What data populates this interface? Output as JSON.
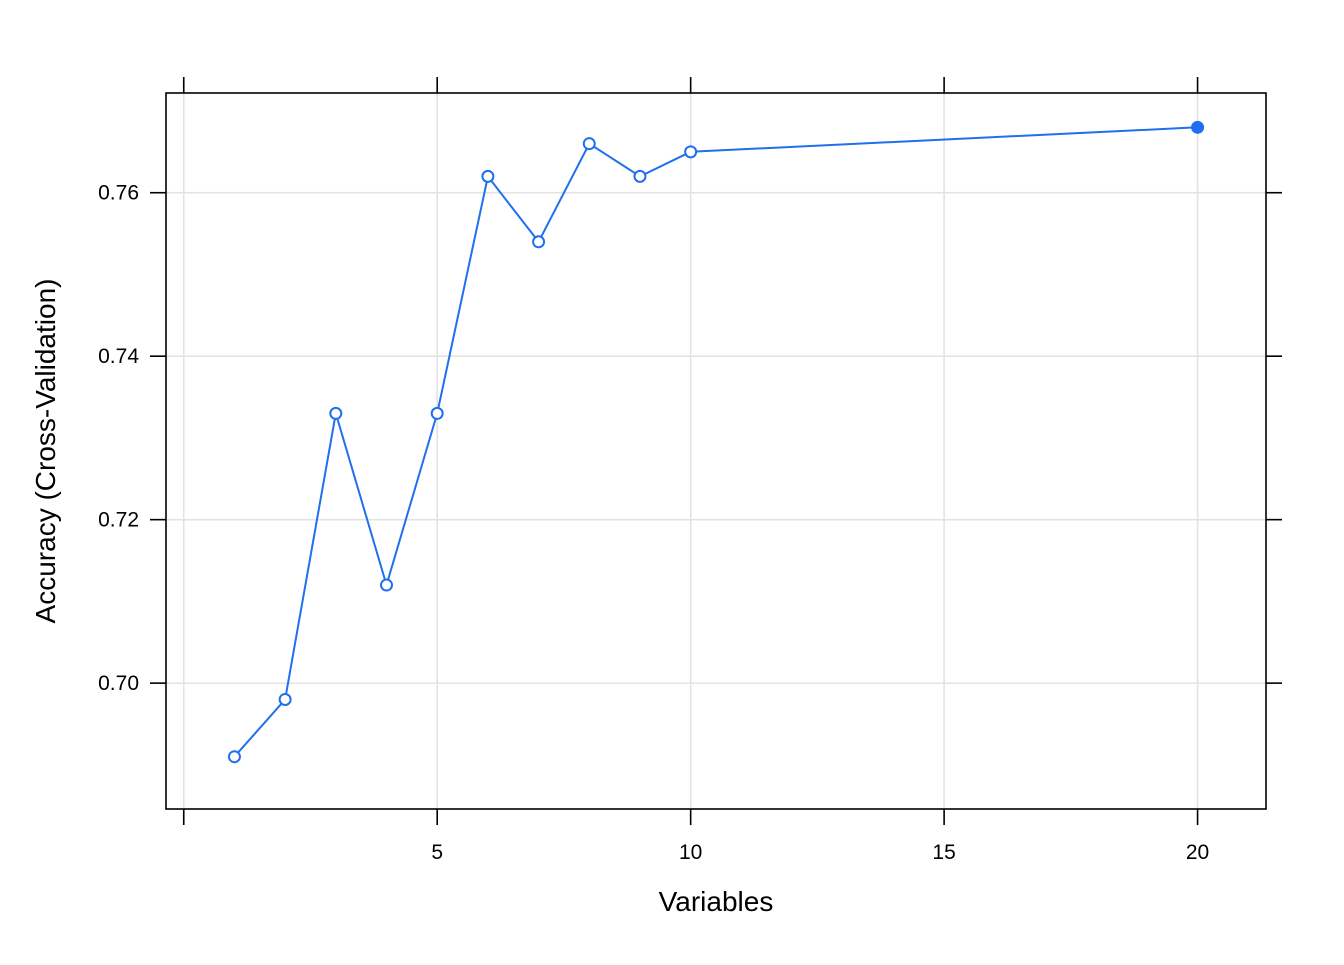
{
  "chart_data": {
    "type": "line",
    "title": "",
    "xlabel": "Variables",
    "ylabel": "Accuracy (Cross-Validation)",
    "xlim": [
      -0.35,
      21.35
    ],
    "ylim": [
      0.6846,
      0.7722
    ],
    "x_ticks": [
      {
        "value": 5,
        "label": "5"
      },
      {
        "value": 10,
        "label": "10"
      },
      {
        "value": 15,
        "label": "15"
      },
      {
        "value": 20,
        "label": "20"
      }
    ],
    "x_grid": [
      0,
      5,
      10,
      15,
      20
    ],
    "y_ticks": [
      {
        "value": 0.7,
        "label": "0.70"
      },
      {
        "value": 0.72,
        "label": "0.72"
      },
      {
        "value": 0.74,
        "label": "0.74"
      },
      {
        "value": 0.76,
        "label": "0.76"
      }
    ],
    "grid": true,
    "series": [
      {
        "x": [
          1,
          2,
          3,
          4,
          5,
          6,
          7,
          8,
          9,
          10,
          20
        ],
        "y": [
          0.691,
          0.698,
          0.733,
          0.712,
          0.733,
          0.762,
          0.754,
          0.766,
          0.762,
          0.765,
          0.768
        ],
        "selected_x": 20
      }
    ],
    "colors": {
      "line": "#1f6fef",
      "grid": "#e3e3e3",
      "frame": "#000000"
    }
  }
}
